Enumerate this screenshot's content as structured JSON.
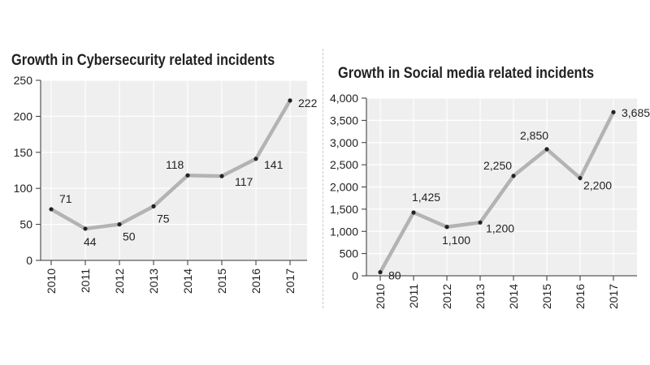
{
  "chart_data": [
    {
      "type": "line",
      "title": "Growth in Cybersecurity related incidents",
      "categories": [
        "2010",
        "2011",
        "2012",
        "2013",
        "2014",
        "2015",
        "2016",
        "2017"
      ],
      "values": [
        71,
        44,
        50,
        75,
        118,
        117,
        141,
        222
      ],
      "data_labels": [
        "71",
        "44",
        "50",
        "75",
        "118",
        "117",
        "141",
        "222"
      ],
      "yticks": [
        "0",
        "50",
        "100",
        "150",
        "200",
        "250"
      ],
      "ylim": [
        0,
        250
      ],
      "grid": true,
      "line_color": "#b3b3b3",
      "point_color": "#222222",
      "panel_color": "#efefef"
    },
    {
      "type": "line",
      "title": "Growth in Social media related incidents",
      "categories": [
        "2010",
        "2011",
        "2012",
        "2013",
        "2014",
        "2015",
        "2016",
        "2017"
      ],
      "values": [
        80,
        1425,
        1100,
        1200,
        2250,
        2850,
        2200,
        3685
      ],
      "data_labels": [
        "80",
        "1,425",
        "1,100",
        "1,200",
        "2,250",
        "2,850",
        "2,200",
        "3,685"
      ],
      "yticks": [
        "0",
        "500",
        "1,000",
        "1,500",
        "2,000",
        "2,500",
        "3,000",
        "3,500",
        "4,000"
      ],
      "ylim": [
        0,
        4000
      ],
      "grid": true,
      "line_color": "#b3b3b3",
      "point_color": "#222222",
      "panel_color": "#efefef"
    }
  ]
}
